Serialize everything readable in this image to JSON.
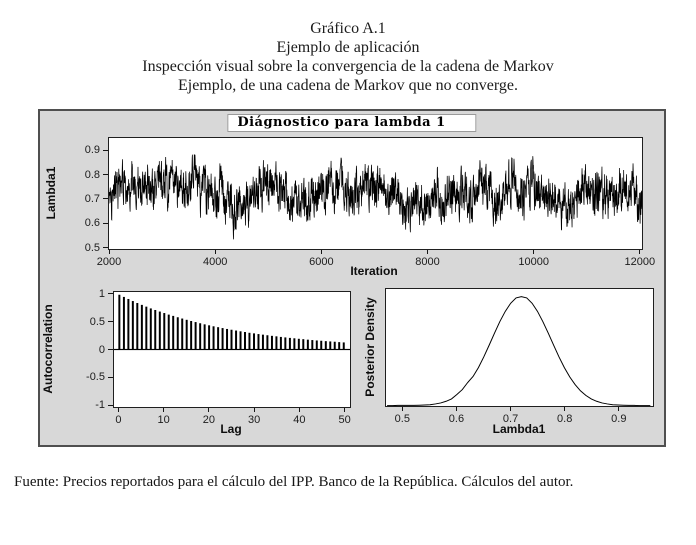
{
  "document": {
    "title_lines": [
      "Gráfico A.1",
      "Ejemplo de aplicación",
      "Inspección visual sobre la convergencia de la cadena de Markov",
      "Ejemplo, de una cadena de Markov que no converge."
    ]
  },
  "panel": {
    "title": "Diágnostico para lambda 1"
  },
  "footer": {
    "source": "Fuente: Precios reportados para el cálculo del IPP. Banco de la República. Cálculos del autor."
  },
  "colors": {
    "page_bg": "#ffffff",
    "panel_bg": "#d8d8d8",
    "plot_bg": "#ffffff",
    "ink": "#000000"
  },
  "chart_data": [
    {
      "id": "trace",
      "type": "line",
      "title": "Diágnostico para lambda 1",
      "xlabel": "Iteration",
      "ylabel": "Lambda1",
      "xlim": [
        1980,
        12060
      ],
      "ylim": [
        0.49,
        0.955
      ],
      "xticks": [
        2000,
        4000,
        6000,
        8000,
        10000,
        12000
      ],
      "xtick_labels": [
        "2000",
        "4000",
        "6000",
        "8000",
        "10000",
        "12000"
      ],
      "yticks": [
        0.5,
        0.6,
        0.7,
        0.8,
        0.9
      ],
      "ytick_labels": [
        "0.5",
        "0.6",
        "0.7",
        "0.8",
        "0.9"
      ],
      "grid": false,
      "description": "MCMC trace of lambda1 for iterations 2000-12000; noisy series fluctuating around 0.72, mostly between 0.55 and 0.9 with excursions to 0.5 and 0.95 (chain does not converge).",
      "generator": {
        "n": 2500,
        "mean": 0.72,
        "phi_fast": 0.5,
        "amp_fast": 0.07,
        "phi_slow": 0.97,
        "amp_slow": 0.014,
        "min": 0.492,
        "max": 0.95,
        "seed": 77
      }
    },
    {
      "id": "acf",
      "type": "bar",
      "xlabel": "Lag",
      "ylabel": "Autocorrelation",
      "xlim": [
        -1.2,
        51.4
      ],
      "ylim": [
        -1.05,
        1.05
      ],
      "xticks": [
        0,
        10,
        20,
        30,
        40,
        50
      ],
      "xtick_labels": [
        "0",
        "10",
        "20",
        "30",
        "40",
        "50"
      ],
      "yticks": [
        1,
        0.5,
        0,
        -0.5,
        -1
      ],
      "ytick_labels": [
        "1",
        "0.5",
        "0",
        "-0.5",
        "-1"
      ],
      "grid": false,
      "description": "Autocorrelation of the chain decaying slowly from 1 at lag 0 to about 0.13 at lag 50 (approx 0.96^lag).",
      "lags_start": 0,
      "values": [
        1.0,
        0.96,
        0.922,
        0.885,
        0.849,
        0.815,
        0.783,
        0.751,
        0.721,
        0.692,
        0.665,
        0.638,
        0.613,
        0.588,
        0.565,
        0.542,
        0.52,
        0.5,
        0.48,
        0.46,
        0.442,
        0.424,
        0.407,
        0.391,
        0.375,
        0.36,
        0.346,
        0.332,
        0.319,
        0.306,
        0.294,
        0.282,
        0.271,
        0.26,
        0.25,
        0.24,
        0.23,
        0.221,
        0.212,
        0.204,
        0.195,
        0.188,
        0.18,
        0.173,
        0.166,
        0.159,
        0.153,
        0.147,
        0.141,
        0.135,
        0.13
      ]
    },
    {
      "id": "density",
      "type": "line",
      "xlabel": "Lambda1",
      "ylabel": "Posterior Density",
      "xlim": [
        0.468,
        0.965
      ],
      "ylim": [
        0,
        1.07
      ],
      "xticks": [
        0.5,
        0.6,
        0.7,
        0.8,
        0.9
      ],
      "xtick_labels": [
        "0.5",
        "0.6",
        "0.7",
        "0.8",
        "0.9"
      ],
      "grid": false,
      "description": "Posterior density of lambda1: bell-shaped curve centered near 0.72 with a slight left shoulder near 0.62; tails flat near zero below 0.55 and above 0.88.",
      "x": [
        0.47,
        0.48,
        0.49,
        0.5,
        0.51,
        0.52,
        0.53,
        0.54,
        0.55,
        0.56,
        0.57,
        0.58,
        0.59,
        0.6,
        0.61,
        0.62,
        0.63,
        0.64,
        0.65,
        0.66,
        0.67,
        0.68,
        0.69,
        0.7,
        0.71,
        0.72,
        0.73,
        0.74,
        0.75,
        0.76,
        0.77,
        0.78,
        0.79,
        0.8,
        0.81,
        0.82,
        0.83,
        0.84,
        0.85,
        0.86,
        0.87,
        0.88,
        0.89,
        0.9,
        0.91,
        0.92,
        0.93,
        0.94,
        0.95,
        0.96
      ],
      "y": [
        0.004,
        0.004,
        0.005,
        0.005,
        0.005,
        0.005,
        0.007,
        0.009,
        0.012,
        0.019,
        0.028,
        0.043,
        0.065,
        0.105,
        0.15,
        0.215,
        0.27,
        0.351,
        0.449,
        0.556,
        0.666,
        0.772,
        0.866,
        0.94,
        0.988,
        1.0,
        0.988,
        0.94,
        0.866,
        0.772,
        0.666,
        0.556,
        0.449,
        0.351,
        0.266,
        0.196,
        0.139,
        0.097,
        0.065,
        0.043,
        0.028,
        0.019,
        0.012,
        0.009,
        0.007,
        0.005,
        0.005,
        0.004,
        0.004,
        0.004
      ]
    }
  ]
}
